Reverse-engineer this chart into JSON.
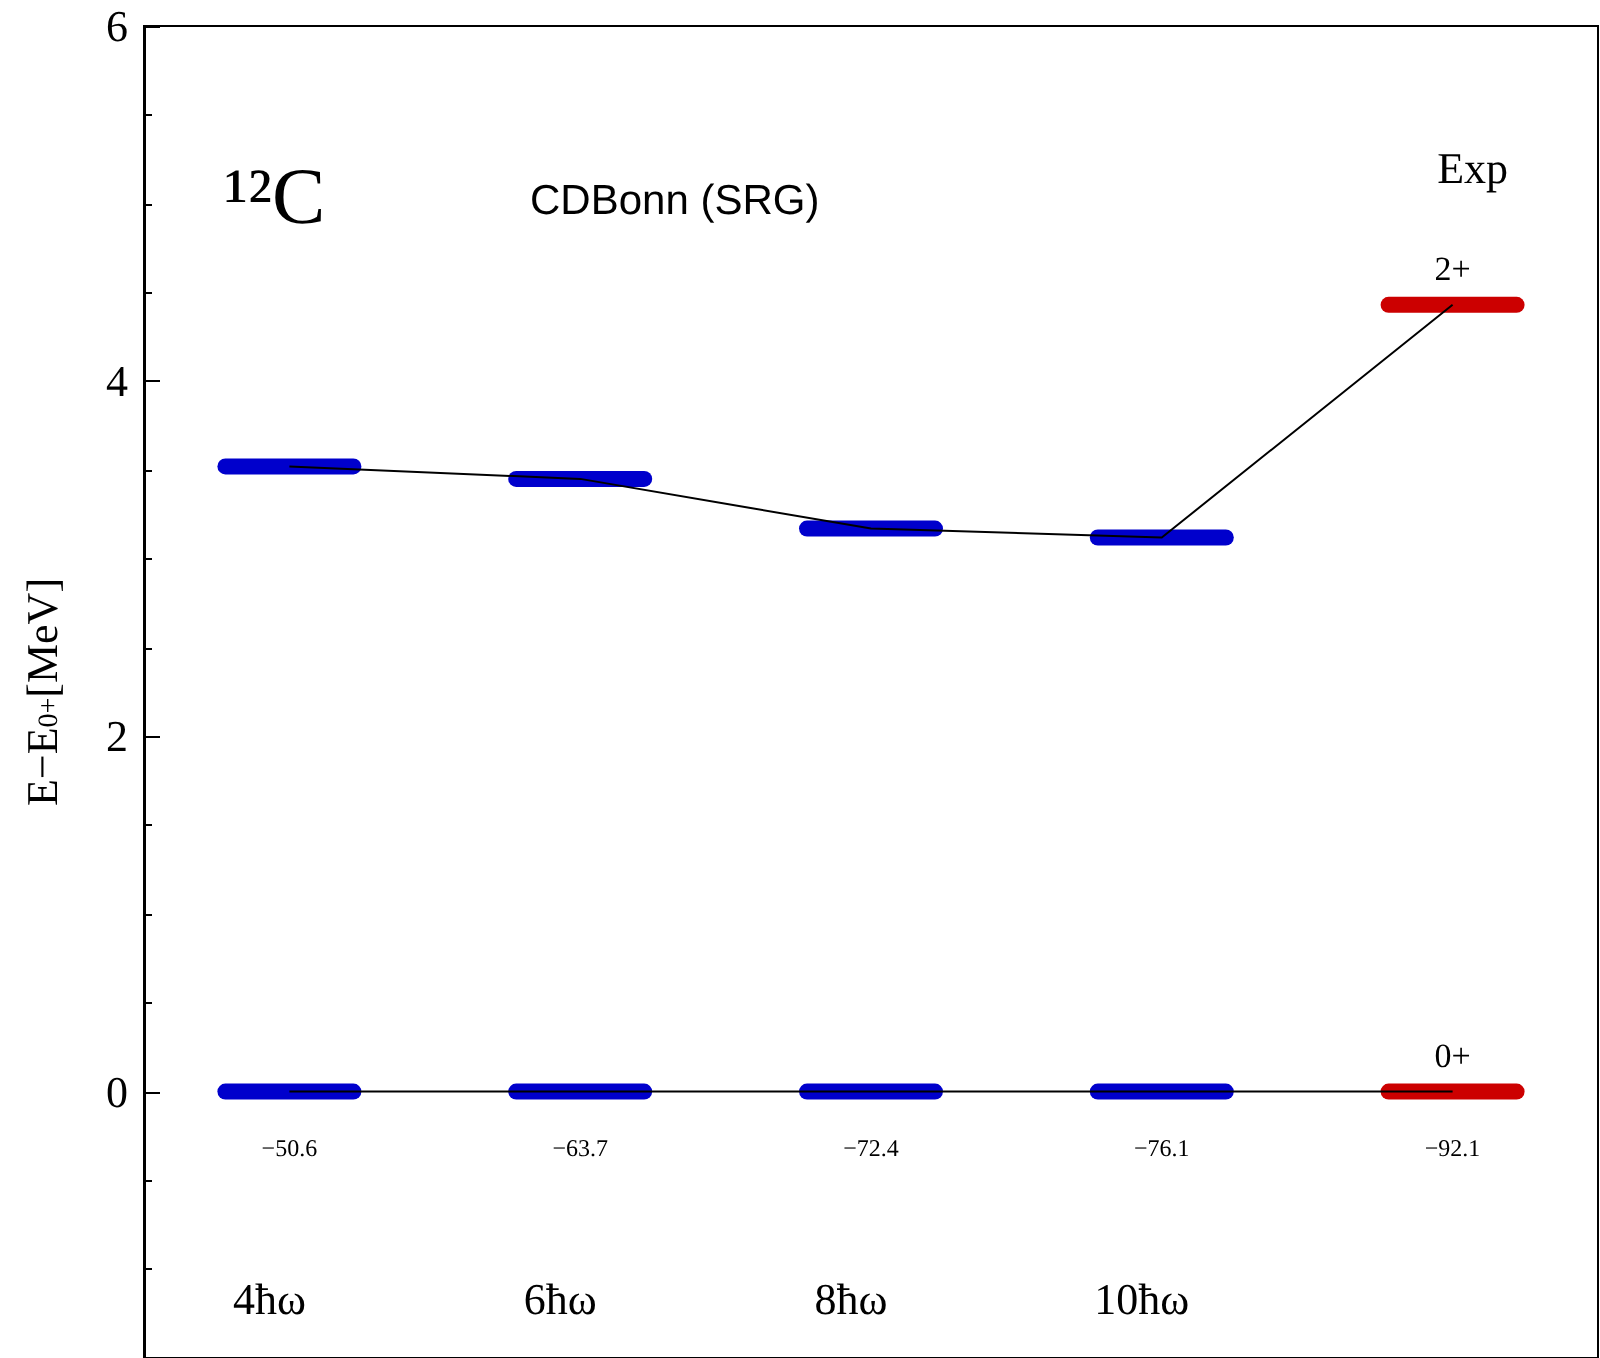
{
  "chart_data": {
    "type": "line",
    "title": "¹²C",
    "subtitle": "CDBonn (SRG)",
    "ylabel": "E−E$_{0+}$[MeV]",
    "categories": [
      "4ħω",
      "6ħω",
      "8ħω",
      "10ħω",
      "Exp"
    ],
    "series": [
      {
        "name": "2+",
        "color": "#000000",
        "colors": [
          "#0000cc",
          "#0000cc",
          "#0000cc",
          "#0000cc",
          "#cc0000"
        ],
        "values": [
          3.52,
          3.45,
          3.17,
          3.12,
          4.43
        ]
      },
      {
        "name": "0+",
        "color": "#000000",
        "colors": [
          "#0000cc",
          "#0000cc",
          "#0000cc",
          "#0000cc",
          "#cc0000"
        ],
        "values": [
          0,
          0,
          0,
          0,
          0
        ]
      }
    ],
    "ylim": [
      -1.5,
      6
    ],
    "yticks": [
      0,
      2,
      4,
      6
    ],
    "grid": false,
    "legend": false,
    "annotations": [
      "−50.6",
      "−63.7",
      "−72.4",
      "−76.1",
      "−92.1"
    ]
  }
}
